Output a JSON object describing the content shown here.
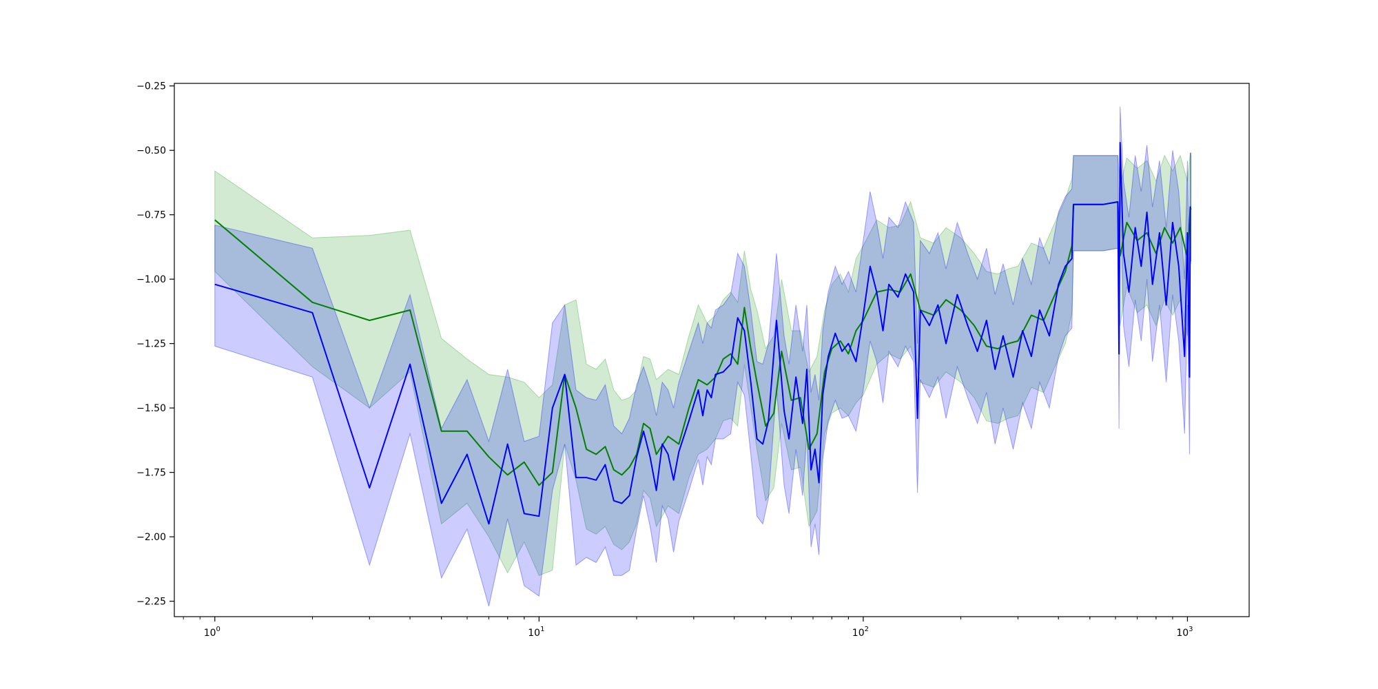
{
  "chart_data": {
    "type": "line",
    "title": "",
    "xlabel": "",
    "ylabel": "",
    "xscale": "log",
    "xlim": [
      0.75,
      1550
    ],
    "ylim": [
      -2.31,
      -0.24
    ],
    "grid": false,
    "x_ticks": [
      {
        "value": 1,
        "label": "10",
        "exp": "0"
      },
      {
        "value": 10,
        "label": "10",
        "exp": "1"
      },
      {
        "value": 100,
        "label": "10",
        "exp": "2"
      },
      {
        "value": 1000,
        "label": "10",
        "exp": "3"
      }
    ],
    "y_ticks": [
      {
        "value": -0.25,
        "label": "−0.25"
      },
      {
        "value": -0.5,
        "label": "−0.50"
      },
      {
        "value": -0.75,
        "label": "−0.75"
      },
      {
        "value": -1.0,
        "label": "−1.00"
      },
      {
        "value": -1.25,
        "label": "−1.25"
      },
      {
        "value": -1.5,
        "label": "−1.50"
      },
      {
        "value": -1.75,
        "label": "−1.75"
      },
      {
        "value": -2.0,
        "label": "−2.00"
      },
      {
        "value": -2.25,
        "label": "−2.25"
      }
    ],
    "series": [
      {
        "color": "#008000",
        "band_color": "#2ca02c",
        "band_opacity": 0.22,
        "points": [
          [
            1,
            -0.77,
            -0.58,
            -0.97
          ],
          [
            2,
            -1.09,
            -0.84,
            -1.34
          ],
          [
            3,
            -1.16,
            -0.83,
            -1.5
          ],
          [
            4,
            -1.12,
            -0.81,
            -1.36
          ],
          [
            5,
            -1.59,
            -1.23,
            -1.95
          ],
          [
            6,
            -1.59,
            -1.31,
            -1.87
          ],
          [
            7,
            -1.69,
            -1.37,
            -2.0
          ],
          [
            8,
            -1.76,
            -1.38,
            -2.14
          ],
          [
            9,
            -1.71,
            -1.4,
            -2.02
          ],
          [
            10,
            -1.8,
            -1.46,
            -2.15
          ],
          [
            11,
            -1.75,
            -1.41,
            -2.13
          ],
          [
            12,
            -1.37,
            -1.1,
            -1.64
          ],
          [
            13,
            -1.5,
            -1.08,
            -1.78
          ],
          [
            14,
            -1.66,
            -1.33,
            -1.97
          ],
          [
            15,
            -1.68,
            -1.35,
            -1.99
          ],
          [
            16,
            -1.65,
            -1.31,
            -1.96
          ],
          [
            17,
            -1.74,
            -1.43,
            -2.03
          ],
          [
            18,
            -1.76,
            -1.47,
            -2.05
          ],
          [
            19,
            -1.73,
            -1.46,
            -2.02
          ],
          [
            20,
            -1.68,
            -1.43,
            -1.95
          ],
          [
            21,
            -1.56,
            -1.3,
            -1.82
          ],
          [
            22,
            -1.58,
            -1.31,
            -1.85
          ],
          [
            23,
            -1.68,
            -1.39,
            -1.96
          ],
          [
            25,
            -1.61,
            -1.35,
            -1.88
          ],
          [
            27,
            -1.64,
            -1.37,
            -1.91
          ],
          [
            29,
            -1.5,
            -1.22,
            -1.77
          ],
          [
            31,
            -1.39,
            -1.1,
            -1.68
          ],
          [
            33,
            -1.41,
            -1.17,
            -1.66
          ],
          [
            35,
            -1.38,
            -1.14,
            -1.62
          ],
          [
            37,
            -1.31,
            -1.08,
            -1.55
          ],
          [
            39,
            -1.29,
            -1.05,
            -1.54
          ],
          [
            41,
            -1.33,
            -1.09,
            -1.57
          ],
          [
            43,
            -1.11,
            -0.89,
            -1.33
          ],
          [
            45,
            -1.27,
            -1.04,
            -1.5
          ],
          [
            47,
            -1.4,
            -1.12,
            -1.66
          ],
          [
            50,
            -1.57,
            -1.27,
            -1.86
          ],
          [
            53,
            -1.52,
            -1.22,
            -1.81
          ],
          [
            56,
            -1.28,
            -1.0,
            -1.56
          ],
          [
            60,
            -1.47,
            -1.2,
            -1.74
          ],
          [
            64,
            -1.46,
            -1.2,
            -1.73
          ],
          [
            68,
            -1.66,
            -1.36,
            -1.96
          ],
          [
            72,
            -1.6,
            -1.3,
            -1.9
          ],
          [
            76,
            -1.36,
            -1.12,
            -1.6
          ],
          [
            80,
            -1.27,
            -1.02,
            -1.52
          ],
          [
            85,
            -1.24,
            -0.98,
            -1.5
          ],
          [
            90,
            -1.29,
            -1.05,
            -1.53
          ],
          [
            95,
            -1.2,
            -0.92,
            -1.48
          ],
          [
            100,
            -1.16,
            -0.87,
            -1.45
          ],
          [
            110,
            -1.05,
            -0.77,
            -1.33
          ],
          [
            120,
            -1.04,
            -0.8,
            -1.29
          ],
          [
            130,
            -1.05,
            -0.79,
            -1.31
          ],
          [
            140,
            -0.98,
            -0.7,
            -1.26
          ],
          [
            150,
            -1.12,
            -0.84,
            -1.4
          ],
          [
            165,
            -1.14,
            -0.86,
            -1.42
          ],
          [
            180,
            -1.08,
            -0.8,
            -1.36
          ],
          [
            200,
            -1.12,
            -0.84,
            -1.4
          ],
          [
            220,
            -1.18,
            -0.9,
            -1.46
          ],
          [
            240,
            -1.26,
            -0.97,
            -1.55
          ],
          [
            260,
            -1.27,
            -0.98,
            -1.56
          ],
          [
            280,
            -1.25,
            -0.96,
            -1.54
          ],
          [
            300,
            -1.24,
            -0.95,
            -1.53
          ],
          [
            330,
            -1.14,
            -0.86,
            -1.42
          ],
          [
            360,
            -1.16,
            -0.88,
            -1.44
          ],
          [
            390,
            -1.06,
            -0.78,
            -1.34
          ],
          [
            420,
            -0.97,
            -0.69,
            -1.25
          ],
          [
            440,
            -0.87,
            -0.61,
            -1.13
          ],
          [
            445,
            -0.71,
            -0.52,
            -0.89
          ],
          [
            500,
            -0.71,
            -0.52,
            -0.89
          ],
          [
            550,
            -0.71,
            -0.52,
            -0.89
          ],
          [
            610,
            -0.7,
            -0.52,
            -0.88
          ],
          [
            620,
            -0.91,
            -0.64,
            -1.18
          ],
          [
            650,
            -0.78,
            -0.53,
            -1.03
          ],
          [
            700,
            -0.85,
            -0.57,
            -1.13
          ],
          [
            750,
            -0.82,
            -0.54,
            -1.1
          ],
          [
            800,
            -0.9,
            -0.62,
            -1.18
          ],
          [
            850,
            -0.8,
            -0.52,
            -1.08
          ],
          [
            900,
            -0.86,
            -0.58,
            -1.14
          ],
          [
            950,
            -0.8,
            -0.52,
            -1.08
          ],
          [
            1000,
            -0.92,
            -0.62,
            -1.22
          ],
          [
            1020,
            -0.72,
            -0.51,
            -0.93
          ],
          [
            1025,
            -0.73,
            -0.52,
            -0.94
          ]
        ]
      },
      {
        "color": "#0000ff",
        "band_color": "#0000ff",
        "band_opacity": 0.2,
        "points": [
          [
            1,
            -1.02,
            -0.79,
            -1.26
          ],
          [
            2,
            -1.13,
            -0.88,
            -1.38
          ],
          [
            3,
            -1.81,
            -1.5,
            -2.11
          ],
          [
            4,
            -1.33,
            -1.06,
            -1.6
          ],
          [
            5,
            -1.87,
            -1.58,
            -2.16
          ],
          [
            6,
            -1.68,
            -1.39,
            -1.97
          ],
          [
            7,
            -1.95,
            -1.63,
            -2.27
          ],
          [
            8,
            -1.64,
            -1.35,
            -1.93
          ],
          [
            9,
            -1.91,
            -1.63,
            -2.19
          ],
          [
            10,
            -1.92,
            -1.61,
            -2.23
          ],
          [
            11,
            -1.5,
            -1.17,
            -1.82
          ],
          [
            12,
            -1.37,
            -1.1,
            -1.64
          ],
          [
            13,
            -1.77,
            -1.43,
            -2.11
          ],
          [
            14,
            -1.77,
            -1.46,
            -2.08
          ],
          [
            15,
            -1.78,
            -1.47,
            -2.1
          ],
          [
            16,
            -1.72,
            -1.41,
            -2.04
          ],
          [
            17,
            -1.86,
            -1.57,
            -2.15
          ],
          [
            18,
            -1.87,
            -1.6,
            -2.15
          ],
          [
            19,
            -1.84,
            -1.54,
            -2.13
          ],
          [
            20,
            -1.69,
            -1.41,
            -1.97
          ],
          [
            21,
            -1.59,
            -1.34,
            -1.84
          ],
          [
            22,
            -1.69,
            -1.42,
            -1.96
          ],
          [
            23,
            -1.82,
            -1.53,
            -2.1
          ],
          [
            24,
            -1.64,
            -1.4,
            -1.88
          ],
          [
            25,
            -1.68,
            -1.43,
            -1.93
          ],
          [
            26,
            -1.78,
            -1.5,
            -2.06
          ],
          [
            27,
            -1.67,
            -1.4,
            -1.94
          ],
          [
            29,
            -1.55,
            -1.28,
            -1.82
          ],
          [
            31,
            -1.43,
            -1.17,
            -1.7
          ],
          [
            32,
            -1.53,
            -1.25,
            -1.8
          ],
          [
            33,
            -1.43,
            -1.17,
            -1.69
          ],
          [
            34,
            -1.46,
            -1.19,
            -1.72
          ],
          [
            35,
            -1.37,
            -1.12,
            -1.62
          ],
          [
            37,
            -1.36,
            -1.1,
            -1.62
          ],
          [
            39,
            -1.33,
            -1.06,
            -1.6
          ],
          [
            41,
            -1.15,
            -0.9,
            -1.4
          ],
          [
            43,
            -1.2,
            -0.95,
            -1.45
          ],
          [
            45,
            -1.4,
            -1.12,
            -1.68
          ],
          [
            47,
            -1.62,
            -1.32,
            -1.92
          ],
          [
            49,
            -1.64,
            -1.33,
            -1.95
          ],
          [
            51,
            -1.55,
            -1.25,
            -1.85
          ],
          [
            54,
            -1.16,
            -0.9,
            -1.42
          ],
          [
            57,
            -1.51,
            -1.22,
            -1.8
          ],
          [
            59,
            -1.62,
            -1.33,
            -1.91
          ],
          [
            62,
            -1.38,
            -1.1,
            -1.66
          ],
          [
            65,
            -1.56,
            -1.28,
            -1.84
          ],
          [
            67,
            -1.35,
            -1.1,
            -1.6
          ],
          [
            69,
            -1.74,
            -1.44,
            -2.04
          ],
          [
            71,
            -1.66,
            -1.37,
            -1.95
          ],
          [
            73,
            -1.79,
            -1.47,
            -2.07
          ],
          [
            75,
            -1.45,
            -1.2,
            -1.7
          ],
          [
            78,
            -1.3,
            -1.05,
            -1.55
          ],
          [
            82,
            -1.21,
            -0.95,
            -1.47
          ],
          [
            86,
            -1.28,
            -1.02,
            -1.54
          ],
          [
            90,
            -1.25,
            -0.97,
            -1.53
          ],
          [
            95,
            -1.32,
            -1.05,
            -1.59
          ],
          [
            100,
            -1.14,
            -0.85,
            -1.43
          ],
          [
            105,
            -0.95,
            -0.66,
            -1.24
          ],
          [
            110,
            -1.05,
            -0.78,
            -1.32
          ],
          [
            115,
            -1.2,
            -0.92,
            -1.48
          ],
          [
            120,
            -1.02,
            -0.76,
            -1.28
          ],
          [
            128,
            -1.07,
            -0.8,
            -1.34
          ],
          [
            135,
            -0.98,
            -0.7,
            -1.26
          ],
          [
            143,
            -1.05,
            -0.78,
            -1.32
          ],
          [
            147,
            -1.54,
            -1.25,
            -1.83
          ],
          [
            150,
            -1.12,
            -0.85,
            -1.39
          ],
          [
            160,
            -1.18,
            -0.9,
            -1.46
          ],
          [
            170,
            -1.1,
            -0.82,
            -1.38
          ],
          [
            180,
            -1.25,
            -0.96,
            -1.54
          ],
          [
            195,
            -1.06,
            -0.78,
            -1.34
          ],
          [
            210,
            -1.18,
            -0.9,
            -1.46
          ],
          [
            225,
            -1.28,
            -1.0,
            -1.56
          ],
          [
            240,
            -1.16,
            -0.88,
            -1.44
          ],
          [
            255,
            -1.35,
            -1.06,
            -1.64
          ],
          [
            270,
            -1.22,
            -0.94,
            -1.5
          ],
          [
            290,
            -1.38,
            -1.1,
            -1.66
          ],
          [
            310,
            -1.2,
            -0.92,
            -1.48
          ],
          [
            330,
            -1.3,
            -1.02,
            -1.58
          ],
          [
            350,
            -1.12,
            -0.84,
            -1.4
          ],
          [
            375,
            -1.22,
            -0.94,
            -1.5
          ],
          [
            400,
            -1.02,
            -0.74,
            -1.3
          ],
          [
            420,
            -0.95,
            -0.68,
            -1.22
          ],
          [
            440,
            -0.92,
            -0.65,
            -1.19
          ],
          [
            445,
            -0.71,
            -0.52,
            -0.89
          ],
          [
            500,
            -0.71,
            -0.52,
            -0.89
          ],
          [
            550,
            -0.71,
            -0.52,
            -0.89
          ],
          [
            610,
            -0.7,
            -0.52,
            -0.88
          ],
          [
            615,
            -1.29,
            -1.0,
            -1.58
          ],
          [
            620,
            -0.47,
            -0.33,
            -0.62
          ],
          [
            635,
            -0.9,
            -0.62,
            -1.18
          ],
          [
            660,
            -1.05,
            -0.76,
            -1.34
          ],
          [
            690,
            -0.8,
            -0.52,
            -1.08
          ],
          [
            720,
            -0.95,
            -0.66,
            -1.24
          ],
          [
            750,
            -0.74,
            -0.48,
            -1.0
          ],
          [
            780,
            -1.02,
            -0.72,
            -1.32
          ],
          [
            820,
            -0.82,
            -0.54,
            -1.1
          ],
          [
            860,
            -1.1,
            -0.8,
            -1.4
          ],
          [
            900,
            -0.78,
            -0.5,
            -1.06
          ],
          [
            940,
            -0.95,
            -0.66,
            -1.24
          ],
          [
            980,
            -1.3,
            -1.0,
            -1.6
          ],
          [
            1000,
            -0.82,
            -0.54,
            -1.1
          ],
          [
            1015,
            -1.38,
            -1.08,
            -1.68
          ],
          [
            1020,
            -0.72,
            -0.51,
            -0.93
          ],
          [
            1025,
            -0.72,
            -0.51,
            -0.93
          ]
        ]
      }
    ]
  }
}
